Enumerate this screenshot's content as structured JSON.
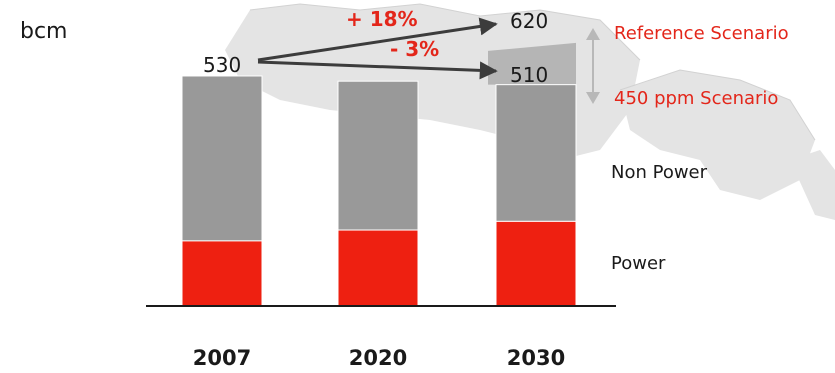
{
  "chart_data": {
    "type": "bar",
    "stacked": true,
    "unit_label": "bcm",
    "categories": [
      "2007",
      "2020",
      "2030"
    ],
    "series": [
      {
        "name": "Power",
        "values": [
          150,
          175,
          195
        ]
      },
      {
        "name": "Non Power",
        "values": [
          380,
          343,
          315
        ]
      }
    ],
    "totals": [
      530,
      518,
      510
    ],
    "reference_total_2030": 620,
    "start_label": "530",
    "end_labels": [
      "620",
      "510"
    ],
    "change_labels": [
      "+ 18%",
      "- 3%"
    ],
    "scenarios": [
      "Reference Scenario",
      "450 ppm Scenario"
    ],
    "ylim": [
      0,
      650
    ],
    "grid": false
  },
  "colors": {
    "power": "#ee2011",
    "non_power": "#999999",
    "reference_band": "#a6a6a6",
    "accent": "#e3261a",
    "arrow": "#3c3c3c",
    "text": "#1a1a1a",
    "axis": "#1a1a1a",
    "scenario_arrow": "#b8b8b8"
  }
}
